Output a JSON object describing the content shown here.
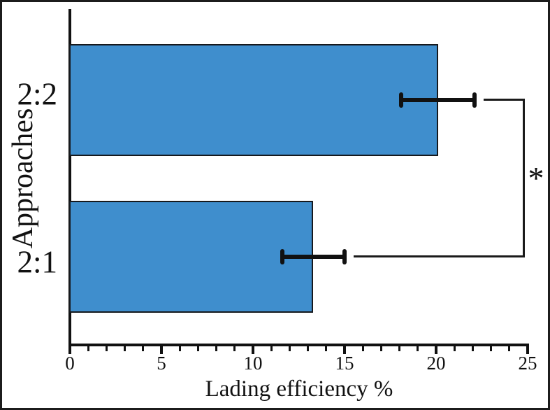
{
  "chart_data": {
    "type": "bar",
    "orientation": "horizontal",
    "title": "",
    "xlabel": "Lading efficiency %",
    "ylabel": "Approaches",
    "categories": [
      "2:2",
      "2:1"
    ],
    "values": [
      20.1,
      13.3
    ],
    "errors": [
      2.0,
      1.7
    ],
    "xlim": [
      0,
      25
    ],
    "x_ticks": [
      0,
      5,
      10,
      15,
      20,
      25
    ],
    "x_tick_labels": [
      "0",
      "5",
      "10",
      "15",
      "20",
      "25"
    ],
    "minor_tick_step": 1,
    "grid": "off",
    "legend": "none",
    "bar_color": "#3f8ecd",
    "bar_border_color": "#16191d",
    "axis_color": "#111111",
    "significance": {
      "label": "*",
      "between": [
        "2:2",
        "2:1"
      ]
    }
  }
}
